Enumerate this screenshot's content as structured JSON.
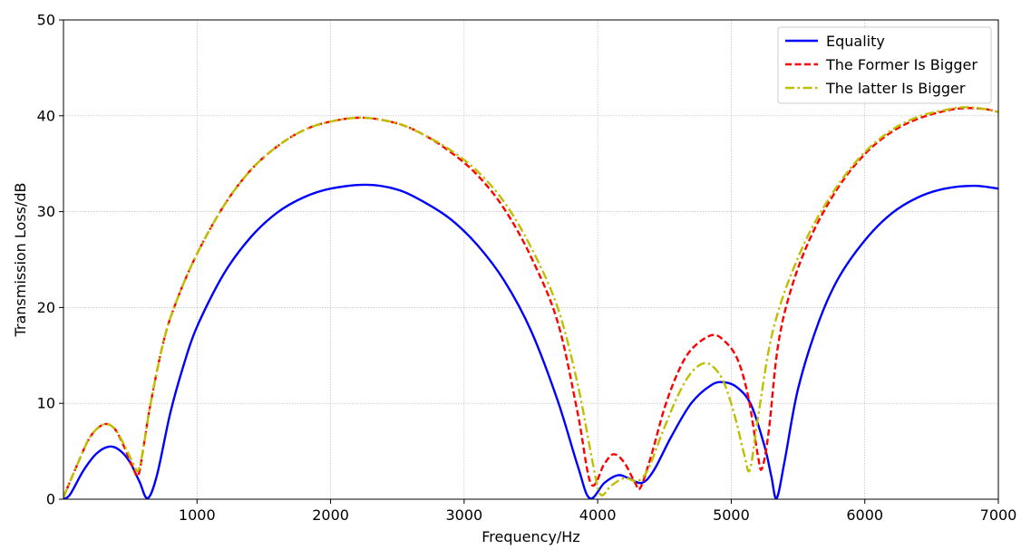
{
  "chart_data": {
    "type": "line",
    "title": "",
    "xlabel": "Frequency/Hz",
    "ylabel": "Transmission Loss/dB",
    "xlim": [
      0,
      7000
    ],
    "ylim": [
      0,
      50
    ],
    "xticks": [
      1000,
      2000,
      3000,
      4000,
      5000,
      6000,
      7000
    ],
    "yticks": [
      0,
      10,
      20,
      30,
      40,
      50
    ],
    "grid": true,
    "legend_position": "top-right",
    "series": [
      {
        "name": "Equality",
        "color": "#0000ff",
        "style": "solid",
        "points": [
          [
            0,
            0
          ],
          [
            50,
            0.5
          ],
          [
            150,
            3
          ],
          [
            250,
            4.8
          ],
          [
            350,
            5.5
          ],
          [
            430,
            5.0
          ],
          [
            500,
            3.8
          ],
          [
            570,
            1.8
          ],
          [
            630,
            0.1
          ],
          [
            700,
            2.5
          ],
          [
            800,
            9
          ],
          [
            900,
            14
          ],
          [
            1000,
            18
          ],
          [
            1200,
            23.5
          ],
          [
            1400,
            27.3
          ],
          [
            1600,
            29.9
          ],
          [
            1800,
            31.5
          ],
          [
            2000,
            32.4
          ],
          [
            2270,
            32.8
          ],
          [
            2500,
            32.3
          ],
          [
            2700,
            31.0
          ],
          [
            2900,
            29.2
          ],
          [
            3100,
            26.5
          ],
          [
            3300,
            22.8
          ],
          [
            3500,
            17.6
          ],
          [
            3700,
            10.3
          ],
          [
            3850,
            3.5
          ],
          [
            3940,
            0.1
          ],
          [
            4050,
            1.7
          ],
          [
            4150,
            2.5
          ],
          [
            4230,
            2.2
          ],
          [
            4330,
            1.7
          ],
          [
            4420,
            3.0
          ],
          [
            4550,
            6.5
          ],
          [
            4700,
            10.0
          ],
          [
            4850,
            11.9
          ],
          [
            4950,
            12.2
          ],
          [
            5050,
            11.6
          ],
          [
            5150,
            9.8
          ],
          [
            5250,
            5.5
          ],
          [
            5300,
            2.4
          ],
          [
            5340,
            0.1
          ],
          [
            5400,
            4.0
          ],
          [
            5500,
            11.5
          ],
          [
            5650,
            18.3
          ],
          [
            5800,
            23.0
          ],
          [
            6000,
            27.0
          ],
          [
            6200,
            29.8
          ],
          [
            6400,
            31.5
          ],
          [
            6600,
            32.4
          ],
          [
            6820,
            32.7
          ],
          [
            7000,
            32.4
          ]
        ]
      },
      {
        "name": "The Former Is Bigger",
        "color": "#ff0000",
        "style": "dashed",
        "points": [
          [
            0,
            0.2
          ],
          [
            100,
            3.5
          ],
          [
            200,
            6.5
          ],
          [
            300,
            7.8
          ],
          [
            380,
            7.4
          ],
          [
            450,
            5.6
          ],
          [
            520,
            3.3
          ],
          [
            560,
            2.5
          ],
          [
            600,
            5.5
          ],
          [
            650,
            9.8
          ],
          [
            750,
            16.5
          ],
          [
            850,
            20.8
          ],
          [
            1000,
            25.6
          ],
          [
            1200,
            30.6
          ],
          [
            1400,
            34.3
          ],
          [
            1600,
            36.8
          ],
          [
            1800,
            38.5
          ],
          [
            2000,
            39.4
          ],
          [
            2240,
            39.8
          ],
          [
            2500,
            39.2
          ],
          [
            2700,
            38.0
          ],
          [
            2900,
            36.2
          ],
          [
            3100,
            33.8
          ],
          [
            3300,
            30.3
          ],
          [
            3500,
            25.3
          ],
          [
            3700,
            18.5
          ],
          [
            3850,
            9.0
          ],
          [
            3950,
            1.6
          ],
          [
            4050,
            3.7
          ],
          [
            4120,
            4.7
          ],
          [
            4200,
            3.8
          ],
          [
            4280,
            1.7
          ],
          [
            4320,
            1.2
          ],
          [
            4400,
            4.5
          ],
          [
            4500,
            9.5
          ],
          [
            4600,
            13.2
          ],
          [
            4700,
            15.6
          ],
          [
            4850,
            17.1
          ],
          [
            4950,
            16.5
          ],
          [
            5050,
            14.5
          ],
          [
            5130,
            10.5
          ],
          [
            5200,
            4.5
          ],
          [
            5230,
            3.2
          ],
          [
            5280,
            7.0
          ],
          [
            5350,
            16.0
          ],
          [
            5450,
            22.0
          ],
          [
            5600,
            27.5
          ],
          [
            5800,
            32.5
          ],
          [
            6000,
            36.0
          ],
          [
            6200,
            38.3
          ],
          [
            6400,
            39.7
          ],
          [
            6600,
            40.5
          ],
          [
            6750,
            40.8
          ],
          [
            6900,
            40.7
          ],
          [
            7000,
            40.4
          ]
        ]
      },
      {
        "name": "The latter Is Bigger",
        "color": "#bfbf00",
        "style": "dashdot",
        "points": [
          [
            0,
            0.2
          ],
          [
            100,
            3.5
          ],
          [
            200,
            6.5
          ],
          [
            300,
            7.8
          ],
          [
            380,
            7.4
          ],
          [
            450,
            5.8
          ],
          [
            520,
            3.8
          ],
          [
            560,
            3.0
          ],
          [
            600,
            5.5
          ],
          [
            650,
            9.8
          ],
          [
            750,
            16.5
          ],
          [
            850,
            20.8
          ],
          [
            1000,
            25.6
          ],
          [
            1200,
            30.6
          ],
          [
            1400,
            34.3
          ],
          [
            1600,
            36.8
          ],
          [
            1800,
            38.5
          ],
          [
            2000,
            39.4
          ],
          [
            2240,
            39.8
          ],
          [
            2500,
            39.2
          ],
          [
            2700,
            38.0
          ],
          [
            2900,
            36.4
          ],
          [
            3100,
            34.2
          ],
          [
            3300,
            31.0
          ],
          [
            3500,
            26.3
          ],
          [
            3700,
            20.0
          ],
          [
            3850,
            12.0
          ],
          [
            3960,
            4.0
          ],
          [
            4020,
            0.5
          ],
          [
            4100,
            1.4
          ],
          [
            4200,
            2.2
          ],
          [
            4300,
            1.9
          ],
          [
            4380,
            3.2
          ],
          [
            4480,
            6.8
          ],
          [
            4600,
            10.8
          ],
          [
            4700,
            13.2
          ],
          [
            4800,
            14.2
          ],
          [
            4880,
            13.6
          ],
          [
            4950,
            12.0
          ],
          [
            5030,
            8.5
          ],
          [
            5100,
            4.5
          ],
          [
            5140,
            3.1
          ],
          [
            5200,
            8.5
          ],
          [
            5280,
            15.5
          ],
          [
            5350,
            19.5
          ],
          [
            5450,
            23.5
          ],
          [
            5600,
            28.2
          ],
          [
            5800,
            32.8
          ],
          [
            6000,
            36.2
          ],
          [
            6200,
            38.5
          ],
          [
            6400,
            39.9
          ],
          [
            6600,
            40.6
          ],
          [
            6750,
            40.9
          ],
          [
            6900,
            40.7
          ],
          [
            7000,
            40.4
          ]
        ]
      }
    ]
  }
}
